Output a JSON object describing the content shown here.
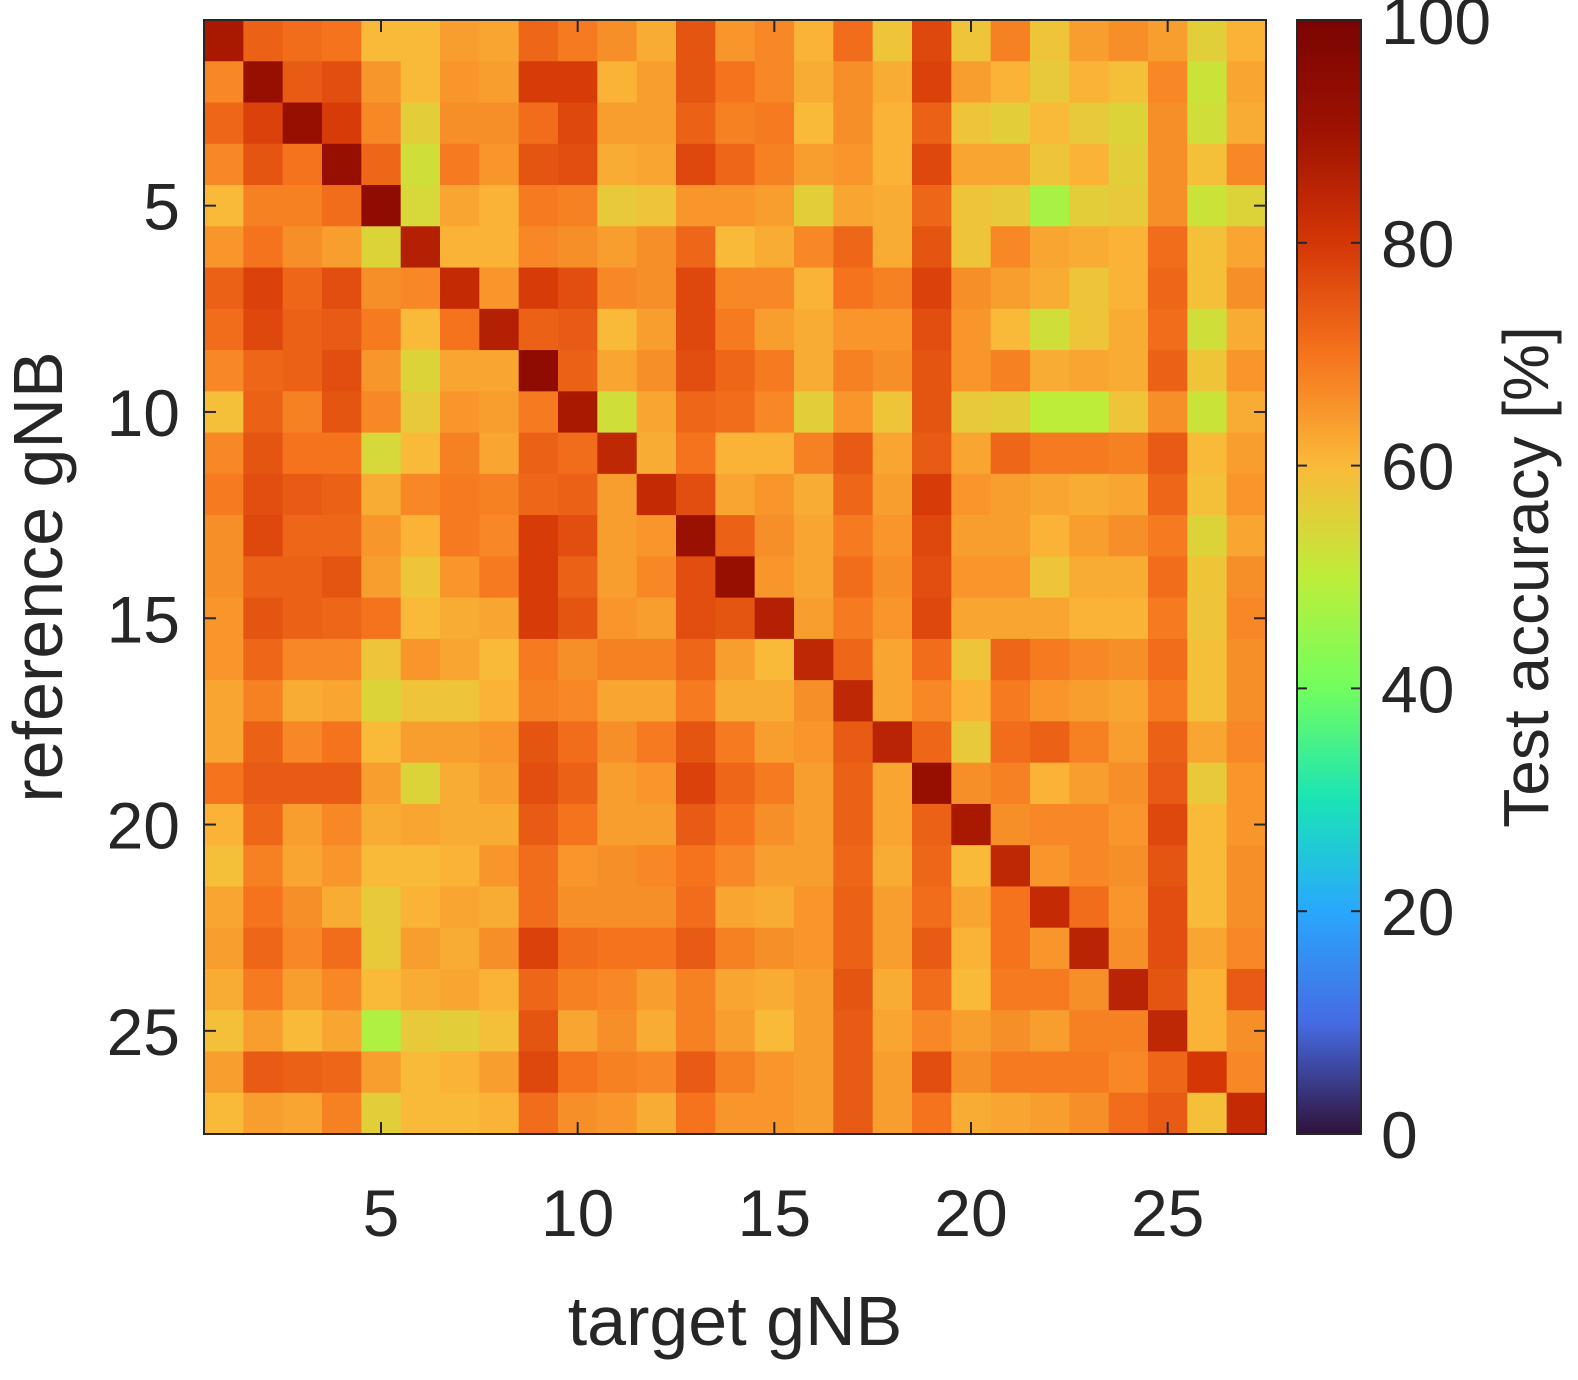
{
  "chart_data": {
    "type": "heatmap",
    "title": "",
    "xlabel": "target gNB",
    "ylabel": "reference gNB",
    "colorbar_label": "Test accuracy [%]",
    "colormap": "turbo",
    "n_rows": 27,
    "n_cols": 27,
    "x_ticks": [
      "5",
      "10",
      "15",
      "20",
      "25"
    ],
    "y_ticks": [
      "5",
      "10",
      "15",
      "20",
      "25"
    ],
    "colorbar_ticks": [
      "0",
      "20",
      "40",
      "60",
      "80",
      "100"
    ],
    "zlim": [
      0,
      100
    ],
    "grid": false,
    "values": [
      [
        88,
        73,
        71,
        70,
        60,
        60,
        64,
        63,
        72,
        69,
        66,
        62,
        75,
        65,
        67,
        61,
        71,
        58,
        77,
        58,
        68,
        58,
        64,
        66,
        64,
        56,
        61
      ],
      [
        67,
        92,
        74,
        76,
        65,
        60,
        65,
        64,
        79,
        79,
        61,
        64,
        75,
        70,
        67,
        62,
        66,
        62,
        78,
        64,
        61,
        57,
        61,
        59,
        67,
        52,
        63
      ],
      [
        72,
        78,
        92,
        79,
        67,
        56,
        66,
        66,
        71,
        77,
        64,
        64,
        73,
        68,
        69,
        60,
        66,
        61,
        73,
        58,
        56,
        60,
        57,
        55,
        66,
        53,
        62
      ],
      [
        67,
        75,
        70,
        92,
        72,
        53,
        69,
        65,
        75,
        76,
        62,
        63,
        77,
        72,
        68,
        64,
        65,
        61,
        77,
        63,
        63,
        58,
        61,
        56,
        66,
        59,
        67
      ],
      [
        60,
        68,
        68,
        71,
        94,
        54,
        63,
        61,
        69,
        68,
        57,
        58,
        65,
        65,
        64,
        56,
        63,
        62,
        72,
        58,
        57,
        47,
        56,
        57,
        66,
        52,
        55
      ],
      [
        65,
        70,
        66,
        64,
        55,
        86,
        61,
        61,
        67,
        66,
        64,
        66,
        72,
        60,
        62,
        67,
        72,
        62,
        75,
        58,
        67,
        63,
        62,
        61,
        71,
        59,
        63
      ],
      [
        73,
        78,
        72,
        76,
        66,
        67,
        83,
        65,
        79,
        76,
        67,
        66,
        77,
        67,
        67,
        61,
        70,
        68,
        78,
        66,
        64,
        62,
        58,
        61,
        72,
        59,
        66
      ],
      [
        71,
        77,
        73,
        74,
        69,
        60,
        70,
        86,
        73,
        74,
        60,
        64,
        77,
        69,
        64,
        62,
        65,
        65,
        76,
        65,
        60,
        53,
        58,
        62,
        71,
        53,
        62
      ],
      [
        67,
        72,
        73,
        76,
        65,
        55,
        63,
        63,
        94,
        73,
        63,
        66,
        76,
        72,
        69,
        62,
        68,
        66,
        75,
        65,
        68,
        62,
        63,
        62,
        73,
        58,
        65
      ],
      [
        59,
        73,
        68,
        75,
        67,
        57,
        65,
        64,
        69,
        88,
        53,
        63,
        72,
        71,
        67,
        56,
        65,
        58,
        75,
        57,
        56,
        50,
        50,
        58,
        66,
        52,
        62
      ],
      [
        67,
        75,
        70,
        70,
        54,
        60,
        68,
        63,
        73,
        71,
        84,
        62,
        70,
        61,
        61,
        68,
        74,
        63,
        74,
        63,
        72,
        69,
        69,
        68,
        74,
        60,
        64
      ],
      [
        69,
        76,
        74,
        73,
        62,
        67,
        69,
        68,
        72,
        73,
        64,
        83,
        76,
        63,
        65,
        62,
        72,
        64,
        79,
        65,
        64,
        63,
        62,
        63,
        72,
        59,
        65
      ],
      [
        66,
        77,
        72,
        72,
        65,
        61,
        69,
        67,
        79,
        76,
        64,
        65,
        91,
        73,
        66,
        63,
        69,
        65,
        77,
        64,
        64,
        61,
        64,
        66,
        69,
        55,
        63
      ],
      [
        66,
        73,
        73,
        75,
        64,
        58,
        65,
        69,
        79,
        73,
        64,
        67,
        76,
        92,
        65,
        63,
        71,
        66,
        76,
        65,
        65,
        58,
        62,
        62,
        71,
        58,
        66
      ],
      [
        65,
        75,
        73,
        72,
        70,
        60,
        62,
        63,
        79,
        75,
        65,
        64,
        76,
        75,
        86,
        64,
        69,
        65,
        77,
        63,
        63,
        63,
        61,
        61,
        69,
        58,
        67
      ],
      [
        65,
        72,
        67,
        67,
        58,
        65,
        63,
        60,
        69,
        66,
        68,
        68,
        72,
        64,
        60,
        84,
        72,
        63,
        71,
        58,
        72,
        69,
        67,
        66,
        71,
        59,
        66
      ],
      [
        63,
        68,
        62,
        63,
        55,
        58,
        58,
        61,
        68,
        67,
        63,
        63,
        69,
        62,
        62,
        66,
        84,
        63,
        67,
        61,
        69,
        65,
        64,
        63,
        69,
        59,
        66
      ],
      [
        63,
        73,
        67,
        70,
        60,
        64,
        64,
        65,
        75,
        71,
        66,
        69,
        75,
        69,
        64,
        65,
        74,
        85,
        72,
        57,
        71,
        73,
        68,
        64,
        73,
        63,
        67
      ],
      [
        70,
        74,
        74,
        74,
        64,
        55,
        62,
        64,
        76,
        73,
        64,
        65,
        78,
        72,
        69,
        64,
        73,
        63,
        92,
        66,
        68,
        61,
        64,
        66,
        74,
        57,
        65
      ],
      [
        61,
        72,
        64,
        67,
        62,
        63,
        62,
        62,
        74,
        70,
        64,
        64,
        74,
        70,
        66,
        64,
        73,
        63,
        73,
        88,
        66,
        67,
        67,
        65,
        77,
        60,
        65
      ],
      [
        59,
        68,
        63,
        65,
        60,
        60,
        61,
        65,
        71,
        65,
        66,
        67,
        70,
        67,
        64,
        64,
        72,
        62,
        72,
        60,
        84,
        65,
        67,
        66,
        75,
        60,
        66
      ],
      [
        63,
        70,
        66,
        62,
        57,
        61,
        63,
        62,
        71,
        66,
        66,
        66,
        71,
        63,
        62,
        65,
        73,
        64,
        71,
        63,
        70,
        83,
        71,
        65,
        76,
        60,
        66
      ],
      [
        64,
        72,
        67,
        71,
        57,
        64,
        62,
        66,
        78,
        71,
        70,
        70,
        74,
        68,
        66,
        65,
        73,
        64,
        74,
        61,
        70,
        65,
        85,
        66,
        76,
        63,
        67
      ],
      [
        62,
        69,
        64,
        67,
        60,
        62,
        63,
        61,
        72,
        68,
        67,
        64,
        68,
        63,
        62,
        64,
        75,
        62,
        71,
        60,
        69,
        69,
        66,
        85,
        75,
        61,
        74
      ],
      [
        59,
        64,
        60,
        63,
        48,
        57,
        56,
        59,
        75,
        63,
        66,
        62,
        68,
        64,
        60,
        64,
        74,
        63,
        67,
        64,
        66,
        64,
        68,
        68,
        84,
        61,
        66
      ],
      [
        64,
        74,
        73,
        72,
        64,
        60,
        61,
        64,
        77,
        70,
        68,
        67,
        74,
        68,
        65,
        64,
        74,
        64,
        76,
        66,
        69,
        69,
        69,
        67,
        72,
        80,
        67
      ],
      [
        60,
        64,
        63,
        68,
        56,
        60,
        60,
        61,
        71,
        66,
        65,
        62,
        70,
        65,
        65,
        64,
        74,
        64,
        70,
        62,
        63,
        64,
        66,
        71,
        74,
        59,
        83
      ]
    ]
  }
}
